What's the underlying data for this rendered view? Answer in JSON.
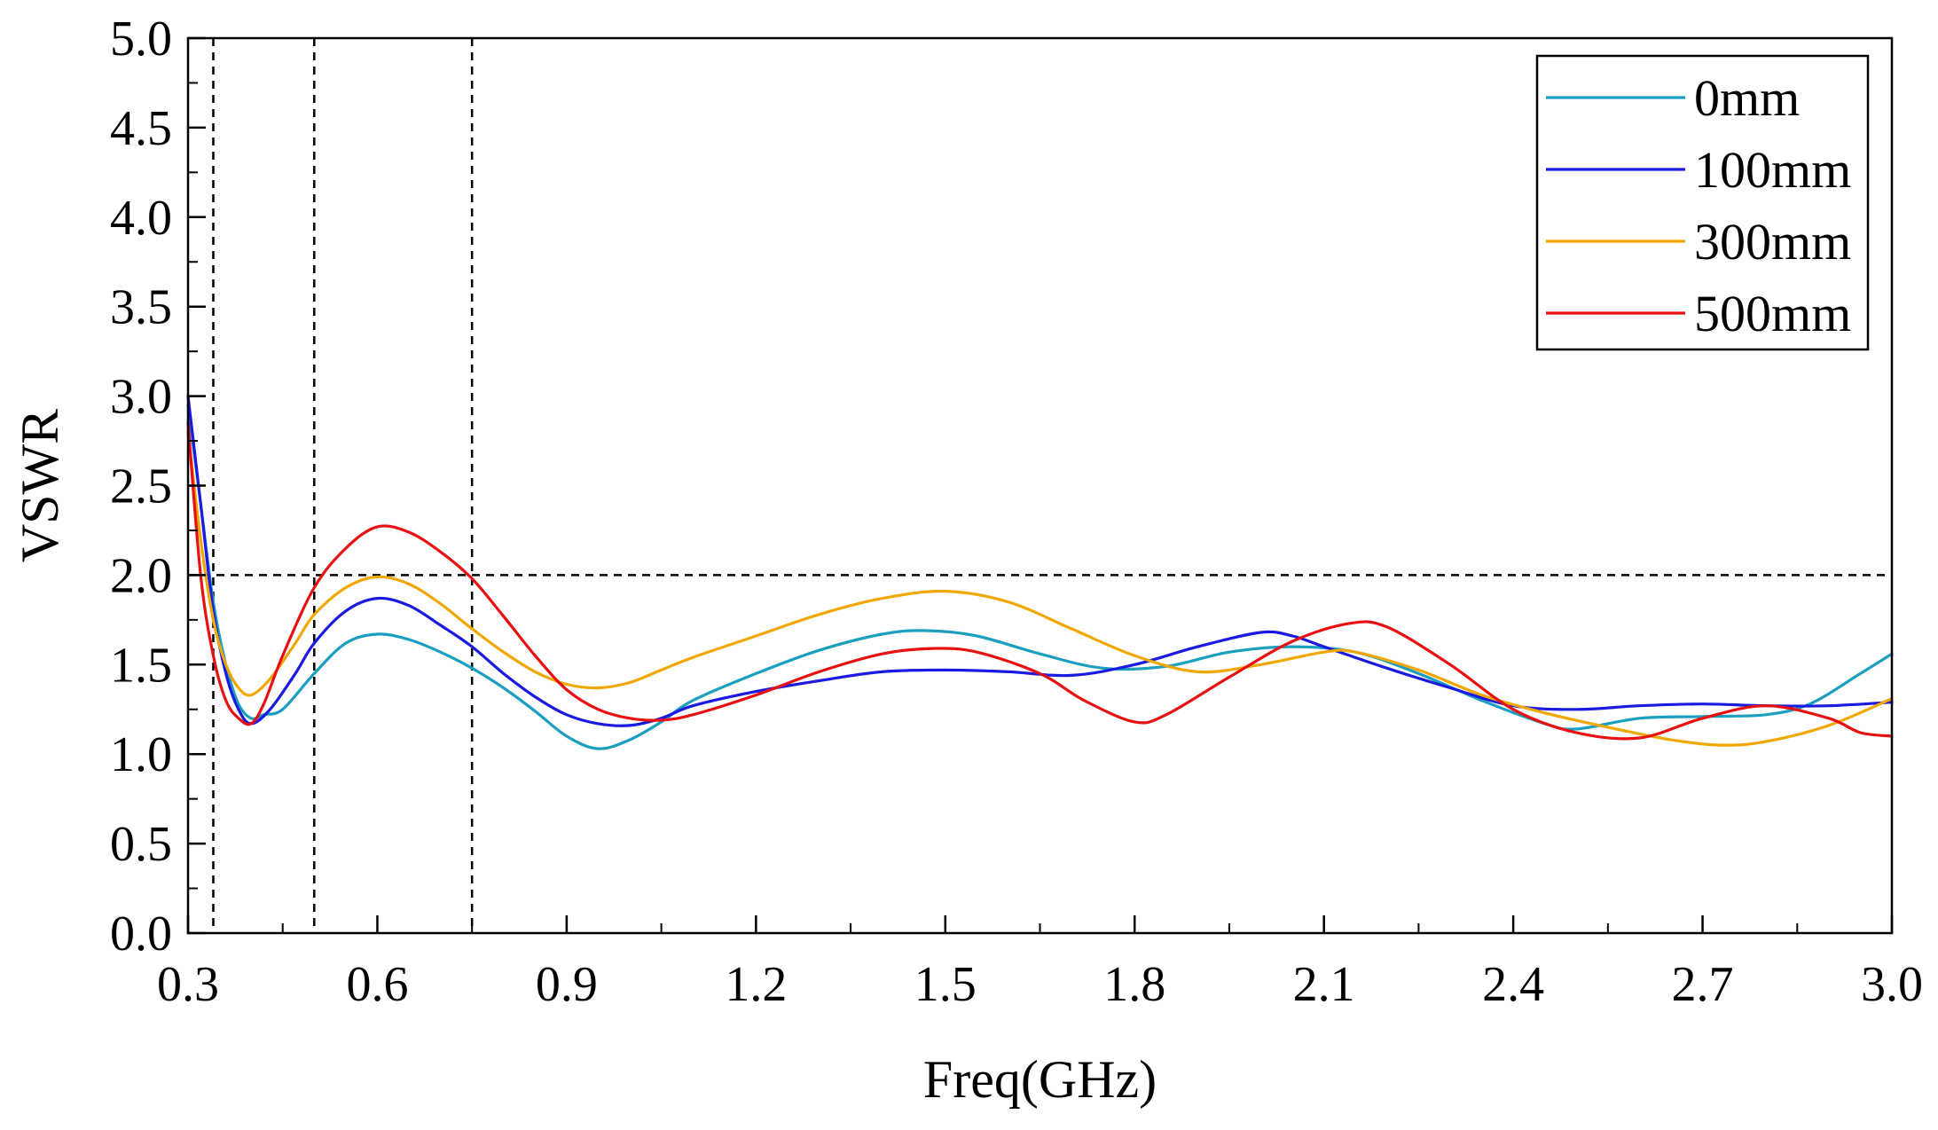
{
  "chart_data": {
    "type": "line",
    "title": "",
    "xlabel": "Freq(GHz)",
    "ylabel": "VSWR",
    "xlim": [
      0.3,
      3.0
    ],
    "ylim": [
      0.0,
      5.0
    ],
    "x_ticks": [
      "0.3",
      "0.6",
      "0.9",
      "1.2",
      "1.5",
      "1.8",
      "2.1",
      "2.4",
      "2.7",
      "3.0"
    ],
    "x_tick_values": [
      0.3,
      0.6,
      0.9,
      1.2,
      1.5,
      1.8,
      2.1,
      2.4,
      2.7,
      3.0
    ],
    "y_ticks": [
      "0.0",
      "0.5",
      "1.0",
      "1.5",
      "2.0",
      "2.5",
      "3.0",
      "3.5",
      "4.0",
      "4.5",
      "5.0"
    ],
    "y_tick_values": [
      0.0,
      0.5,
      1.0,
      1.5,
      2.0,
      2.5,
      3.0,
      3.5,
      4.0,
      4.5,
      5.0
    ],
    "grid": false,
    "legend_position": "top-right",
    "reference_lines": {
      "horizontal_y": [
        2.0
      ],
      "vertical_x": [
        0.34,
        0.5,
        0.75
      ]
    },
    "series": [
      {
        "name": "0mm",
        "color": "#1a9fc0",
        "points": [
          [
            0.3,
            2.95
          ],
          [
            0.32,
            2.4
          ],
          [
            0.34,
            1.85
          ],
          [
            0.36,
            1.5
          ],
          [
            0.38,
            1.28
          ],
          [
            0.4,
            1.2
          ],
          [
            0.42,
            1.22
          ],
          [
            0.45,
            1.25
          ],
          [
            0.5,
            1.45
          ],
          [
            0.55,
            1.62
          ],
          [
            0.6,
            1.67
          ],
          [
            0.65,
            1.64
          ],
          [
            0.7,
            1.57
          ],
          [
            0.75,
            1.48
          ],
          [
            0.8,
            1.37
          ],
          [
            0.85,
            1.24
          ],
          [
            0.9,
            1.1
          ],
          [
            0.95,
            1.03
          ],
          [
            1.0,
            1.08
          ],
          [
            1.05,
            1.18
          ],
          [
            1.1,
            1.3
          ],
          [
            1.2,
            1.45
          ],
          [
            1.3,
            1.58
          ],
          [
            1.4,
            1.67
          ],
          [
            1.47,
            1.69
          ],
          [
            1.55,
            1.66
          ],
          [
            1.65,
            1.56
          ],
          [
            1.75,
            1.48
          ],
          [
            1.85,
            1.49
          ],
          [
            1.95,
            1.57
          ],
          [
            2.05,
            1.6
          ],
          [
            2.15,
            1.57
          ],
          [
            2.25,
            1.45
          ],
          [
            2.35,
            1.3
          ],
          [
            2.45,
            1.17
          ],
          [
            2.5,
            1.14
          ],
          [
            2.6,
            1.2
          ],
          [
            2.7,
            1.21
          ],
          [
            2.8,
            1.22
          ],
          [
            2.87,
            1.28
          ],
          [
            2.95,
            1.45
          ],
          [
            3.0,
            1.56
          ]
        ]
      },
      {
        "name": "100mm",
        "color": "#1a1ae0",
        "points": [
          [
            0.3,
            3.0
          ],
          [
            0.32,
            2.4
          ],
          [
            0.34,
            1.8
          ],
          [
            0.36,
            1.45
          ],
          [
            0.38,
            1.25
          ],
          [
            0.4,
            1.17
          ],
          [
            0.43,
            1.25
          ],
          [
            0.47,
            1.45
          ],
          [
            0.5,
            1.62
          ],
          [
            0.55,
            1.8
          ],
          [
            0.6,
            1.87
          ],
          [
            0.65,
            1.83
          ],
          [
            0.7,
            1.72
          ],
          [
            0.75,
            1.6
          ],
          [
            0.8,
            1.45
          ],
          [
            0.85,
            1.32
          ],
          [
            0.9,
            1.22
          ],
          [
            0.95,
            1.17
          ],
          [
            1.0,
            1.16
          ],
          [
            1.05,
            1.2
          ],
          [
            1.1,
            1.27
          ],
          [
            1.2,
            1.35
          ],
          [
            1.3,
            1.41
          ],
          [
            1.4,
            1.46
          ],
          [
            1.5,
            1.47
          ],
          [
            1.6,
            1.46
          ],
          [
            1.7,
            1.44
          ],
          [
            1.8,
            1.5
          ],
          [
            1.9,
            1.6
          ],
          [
            2.0,
            1.68
          ],
          [
            2.05,
            1.66
          ],
          [
            2.1,
            1.6
          ],
          [
            2.2,
            1.48
          ],
          [
            2.3,
            1.37
          ],
          [
            2.4,
            1.27
          ],
          [
            2.5,
            1.25
          ],
          [
            2.6,
            1.27
          ],
          [
            2.7,
            1.28
          ],
          [
            2.8,
            1.27
          ],
          [
            2.9,
            1.27
          ],
          [
            3.0,
            1.29
          ]
        ]
      },
      {
        "name": "300mm",
        "color": "#f0a800",
        "points": [
          [
            0.3,
            2.8
          ],
          [
            0.32,
            2.2
          ],
          [
            0.34,
            1.75
          ],
          [
            0.36,
            1.5
          ],
          [
            0.38,
            1.37
          ],
          [
            0.4,
            1.33
          ],
          [
            0.43,
            1.42
          ],
          [
            0.47,
            1.62
          ],
          [
            0.5,
            1.78
          ],
          [
            0.55,
            1.93
          ],
          [
            0.6,
            1.99
          ],
          [
            0.65,
            1.95
          ],
          [
            0.7,
            1.84
          ],
          [
            0.75,
            1.7
          ],
          [
            0.8,
            1.57
          ],
          [
            0.85,
            1.46
          ],
          [
            0.9,
            1.39
          ],
          [
            0.95,
            1.37
          ],
          [
            1.0,
            1.4
          ],
          [
            1.05,
            1.47
          ],
          [
            1.1,
            1.54
          ],
          [
            1.2,
            1.66
          ],
          [
            1.3,
            1.78
          ],
          [
            1.4,
            1.87
          ],
          [
            1.5,
            1.91
          ],
          [
            1.6,
            1.85
          ],
          [
            1.7,
            1.7
          ],
          [
            1.8,
            1.55
          ],
          [
            1.9,
            1.46
          ],
          [
            2.0,
            1.5
          ],
          [
            2.1,
            1.57
          ],
          [
            2.15,
            1.57
          ],
          [
            2.25,
            1.47
          ],
          [
            2.35,
            1.33
          ],
          [
            2.45,
            1.23
          ],
          [
            2.55,
            1.15
          ],
          [
            2.65,
            1.08
          ],
          [
            2.73,
            1.05
          ],
          [
            2.8,
            1.07
          ],
          [
            2.9,
            1.16
          ],
          [
            3.0,
            1.31
          ]
        ]
      },
      {
        "name": "500mm",
        "color": "#e81010",
        "points": [
          [
            0.3,
            2.85
          ],
          [
            0.32,
            2.0
          ],
          [
            0.34,
            1.55
          ],
          [
            0.36,
            1.3
          ],
          [
            0.38,
            1.2
          ],
          [
            0.4,
            1.17
          ],
          [
            0.42,
            1.28
          ],
          [
            0.45,
            1.55
          ],
          [
            0.5,
            1.93
          ],
          [
            0.55,
            2.15
          ],
          [
            0.6,
            2.27
          ],
          [
            0.65,
            2.24
          ],
          [
            0.7,
            2.13
          ],
          [
            0.75,
            1.98
          ],
          [
            0.8,
            1.77
          ],
          [
            0.85,
            1.55
          ],
          [
            0.9,
            1.36
          ],
          [
            0.95,
            1.25
          ],
          [
            1.0,
            1.2
          ],
          [
            1.05,
            1.19
          ],
          [
            1.1,
            1.22
          ],
          [
            1.2,
            1.33
          ],
          [
            1.3,
            1.46
          ],
          [
            1.4,
            1.56
          ],
          [
            1.48,
            1.59
          ],
          [
            1.55,
            1.57
          ],
          [
            1.65,
            1.45
          ],
          [
            1.72,
            1.3
          ],
          [
            1.8,
            1.18
          ],
          [
            1.85,
            1.22
          ],
          [
            1.95,
            1.43
          ],
          [
            2.05,
            1.63
          ],
          [
            2.14,
            1.73
          ],
          [
            2.2,
            1.71
          ],
          [
            2.3,
            1.5
          ],
          [
            2.4,
            1.25
          ],
          [
            2.5,
            1.12
          ],
          [
            2.6,
            1.09
          ],
          [
            2.7,
            1.2
          ],
          [
            2.8,
            1.27
          ],
          [
            2.9,
            1.2
          ],
          [
            2.95,
            1.12
          ],
          [
            3.0,
            1.1
          ]
        ]
      }
    ]
  }
}
